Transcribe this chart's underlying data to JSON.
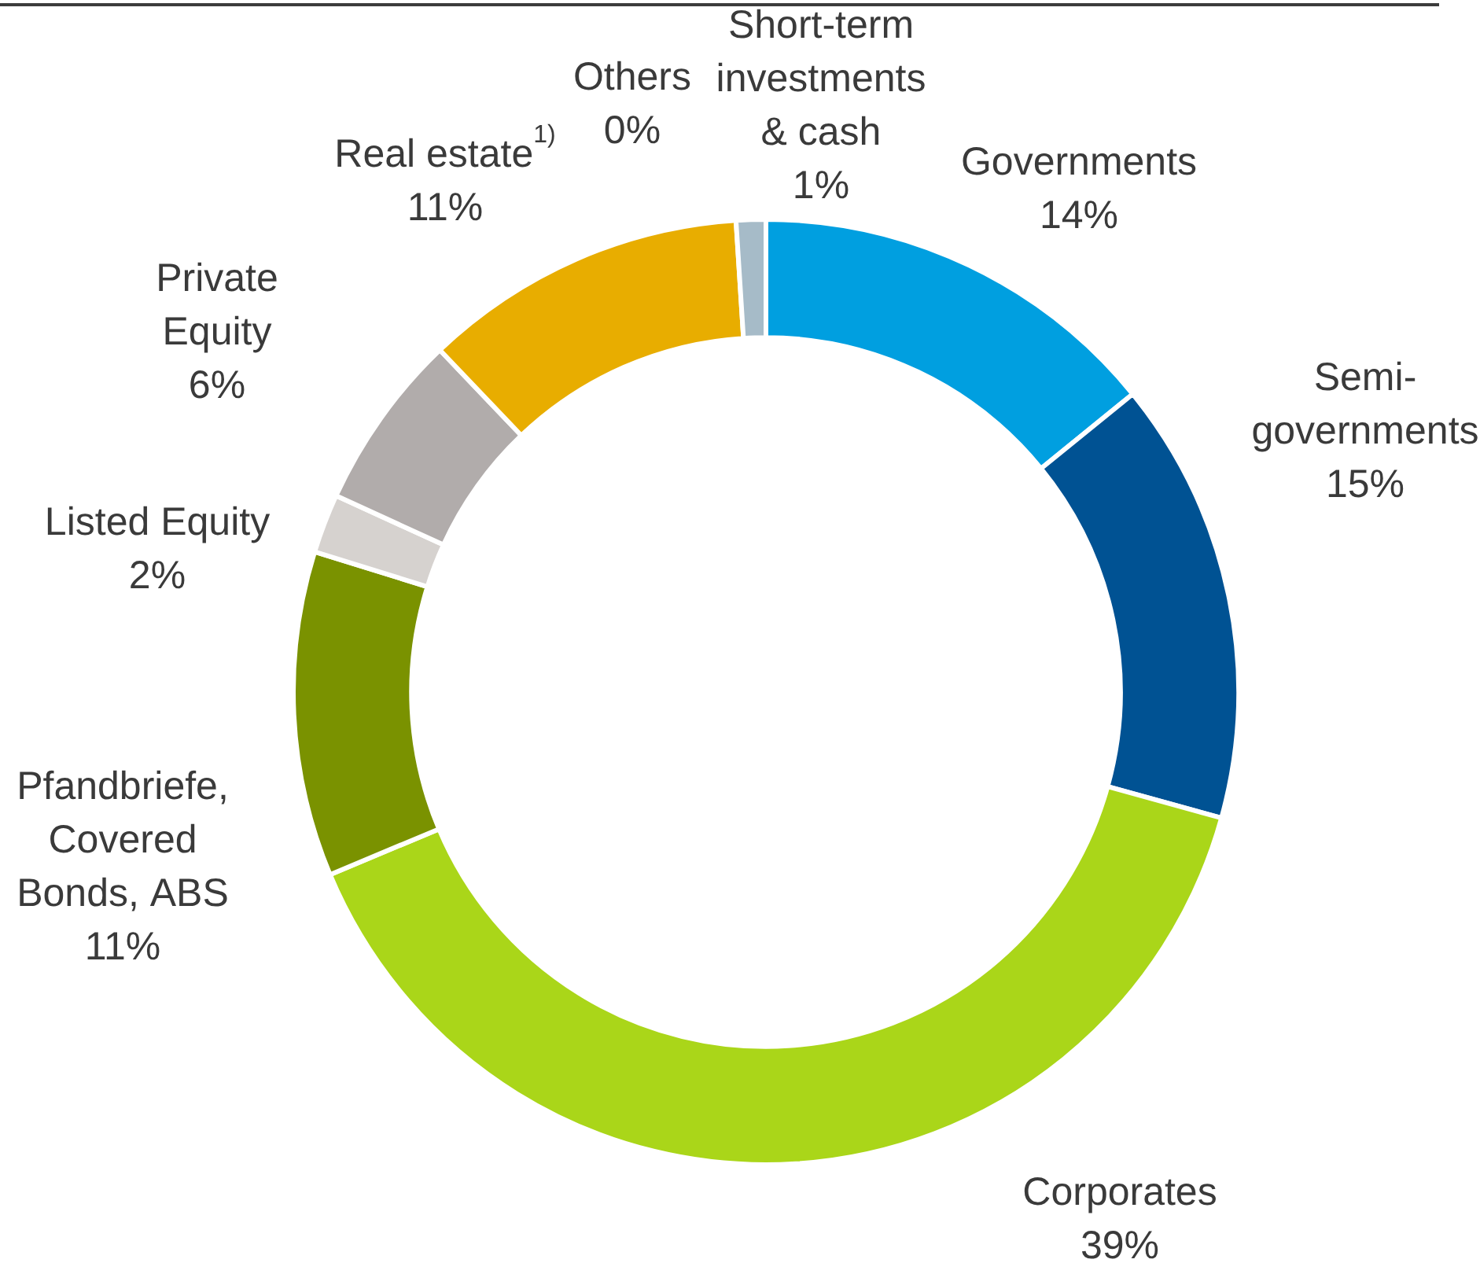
{
  "chart_data": {
    "type": "donut",
    "categories": [
      "Governments",
      "Semi-governments",
      "Corporates",
      "Pfandbriefe, Covered Bonds, ABS",
      "Listed Equity",
      "Private Equity",
      "Real estate$^{1)}$",
      "Others",
      "Short-term investments & cash"
    ],
    "values": [
      14,
      15,
      39,
      11,
      2,
      6,
      11,
      0,
      1
    ],
    "colors": [
      "#009fe0",
      "#005293",
      "#aad619",
      "#7a9200",
      "#d6d2cf",
      "#b1acab",
      "#e8ad00",
      "#6a7d8a",
      "#a6bbc8"
    ],
    "value_labels": [
      "14%",
      "15%",
      "39%",
      "11%",
      "2%",
      "6%",
      "11%",
      "0%",
      "1%"
    ],
    "legend": false
  }
}
